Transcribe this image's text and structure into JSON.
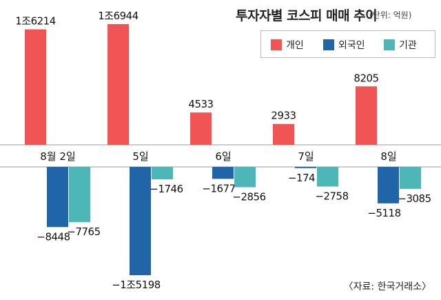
{
  "title": "투자자별 코스피 매매 추이",
  "unit": "(단위: 억원)",
  "source": "〈자료: 한국거래소〉",
  "legend": [
    {
      "name": "개인",
      "color": "#f05454"
    },
    {
      "name": "외국인",
      "color": "#1f65a8"
    },
    {
      "name": "기관",
      "color": "#4db6b7"
    }
  ],
  "chart_data": {
    "type": "bar",
    "title": "투자자별 코스피 매매 추이",
    "unit": "억원",
    "categories": [
      "8월 2일",
      "5일",
      "6일",
      "7일",
      "8일"
    ],
    "series": [
      {
        "name": "개인",
        "values": [
          16214,
          16944,
          4533,
          2933,
          8205
        ],
        "labels": [
          "1조6214",
          "1조6944",
          "4533",
          "2933",
          "8205"
        ]
      },
      {
        "name": "외국인",
        "values": [
          -8448,
          -15198,
          -1677,
          -174,
          -5118
        ],
        "labels": [
          "−8448",
          "−1조5198",
          "−1677",
          "−174",
          "−5118"
        ]
      },
      {
        "name": "기관",
        "values": [
          -7765,
          -1746,
          -2856,
          -2758,
          -3085
        ],
        "labels": [
          "−7765",
          "−1746",
          "−2856",
          "−2758",
          "−3085"
        ]
      }
    ],
    "colors": [
      "#f05454",
      "#1f65a8",
      "#4db6b7"
    ],
    "legend_position": "top-right"
  }
}
